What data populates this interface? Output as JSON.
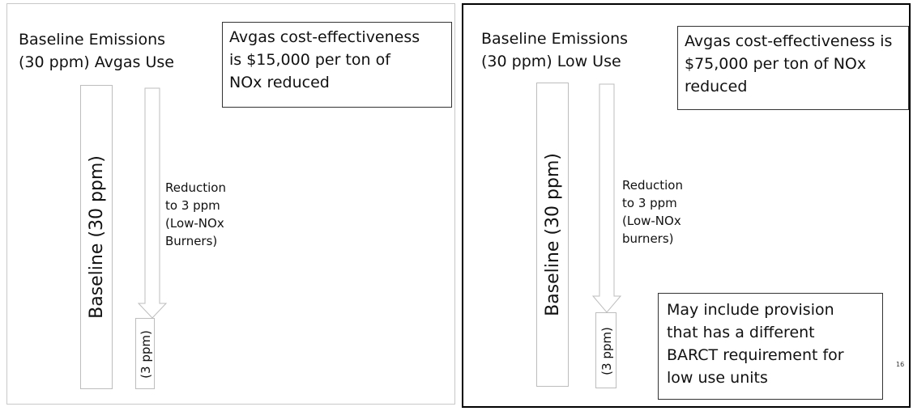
{
  "left": {
    "heading_line1": "Baseline Emissions",
    "heading_line2": "(30 ppm) Avgas Use",
    "box_line1": "Avgas cost-effectiveness",
    "box_line2": "is $15,000 per ton of",
    "box_line3": "NOx reduced",
    "bar_label": "Baseline (30 ppm)",
    "reduction_line1": "Reduction",
    "reduction_line2": "to 3 ppm",
    "reduction_line3": "(Low-NOx",
    "reduction_line4": "Burners)",
    "small_label": "(3 ppm)"
  },
  "right": {
    "heading_line1": "Baseline Emissions",
    "heading_line2": "(30 ppm) Low Use",
    "box_line1": "Avgas cost-effectiveness is",
    "box_line2": "$75,000 per ton of NOx",
    "box_line3": "reduced",
    "bar_label": "Baseline (30 ppm)",
    "reduction_line1": "Reduction",
    "reduction_line2": "to 3 ppm",
    "reduction_line3": "(Low-NOx",
    "reduction_line4": "burners)",
    "small_label": "(3 ppm)",
    "provision_line1": "May include provision",
    "provision_line2": "that has a different",
    "provision_line3": "BARCT requirement for",
    "provision_line4": "low use units"
  },
  "page_number": "16"
}
